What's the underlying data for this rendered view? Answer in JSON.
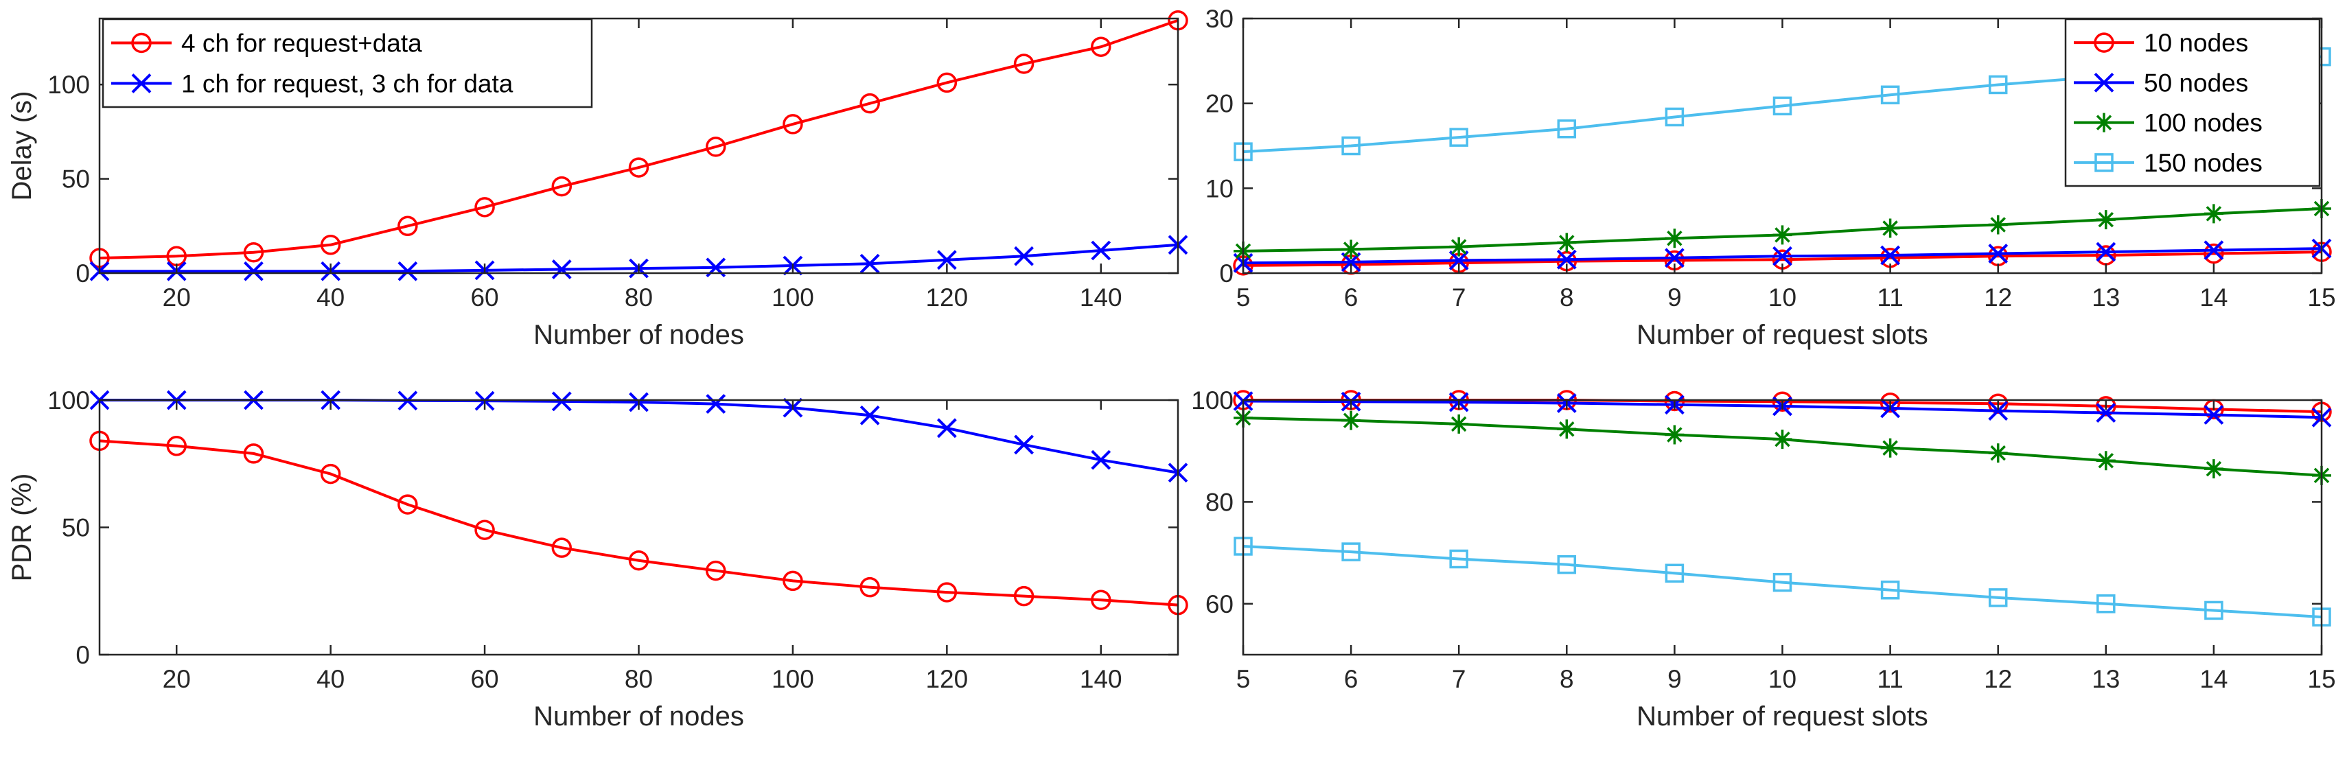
{
  "chart_data": [
    {
      "type": "line",
      "xlabel": "Number of nodes",
      "ylabel": "Delay (s)",
      "xlim": [
        10,
        150
      ],
      "ylim": [
        0,
        135
      ],
      "xticks": [
        20,
        40,
        60,
        80,
        100,
        120,
        140
      ],
      "yticks": [
        0,
        50,
        100
      ],
      "legend_position": "top-left",
      "x": [
        10,
        20,
        30,
        40,
        50,
        60,
        70,
        80,
        90,
        100,
        110,
        120,
        130,
        140,
        150
      ],
      "series": [
        {
          "name": "4 ch for request+data",
          "color": "#ff0000",
          "marker": "circle",
          "values": [
            8,
            9,
            11,
            15,
            25,
            35,
            46,
            56,
            67,
            79,
            90,
            101,
            111,
            120,
            134
          ]
        },
        {
          "name": "1 ch for request, 3 ch for data",
          "color": "#0000ff",
          "marker": "x",
          "values": [
            1,
            1,
            1,
            1,
            1,
            1.5,
            2,
            2.5,
            3,
            4,
            5,
            7,
            9,
            12,
            15
          ]
        }
      ]
    },
    {
      "type": "line",
      "xlabel": "Number of request slots",
      "ylabel": "",
      "xlim": [
        5,
        15
      ],
      "ylim": [
        0,
        30
      ],
      "xticks": [
        5,
        6,
        7,
        8,
        9,
        10,
        11,
        12,
        13,
        14,
        15
      ],
      "yticks": [
        0,
        10,
        20,
        30
      ],
      "legend_position": "top-right",
      "x": [
        5,
        6,
        7,
        8,
        9,
        10,
        11,
        12,
        13,
        14,
        15
      ],
      "series": [
        {
          "name": "10 nodes",
          "color": "#ff0000",
          "marker": "circle",
          "values": [
            0.9,
            1.0,
            1.2,
            1.4,
            1.5,
            1.6,
            1.8,
            2.0,
            2.1,
            2.3,
            2.5
          ]
        },
        {
          "name": "50 nodes",
          "color": "#0000ff",
          "marker": "x",
          "values": [
            1.2,
            1.3,
            1.5,
            1.6,
            1.8,
            2.0,
            2.1,
            2.3,
            2.5,
            2.7,
            2.9
          ]
        },
        {
          "name": "100 nodes",
          "color": "#008000",
          "marker": "asterisk",
          "values": [
            2.6,
            2.8,
            3.1,
            3.6,
            4.1,
            4.5,
            5.3,
            5.7,
            6.3,
            7.0,
            7.6
          ]
        },
        {
          "name": "150 nodes",
          "color": "#4dbeee",
          "marker": "square",
          "values": [
            14.3,
            15.0,
            16.0,
            17.0,
            18.4,
            19.7,
            21.0,
            22.2,
            23.2,
            24.3,
            25.5
          ]
        }
      ]
    },
    {
      "type": "line",
      "xlabel": "Number of nodes",
      "ylabel": "PDR (%)",
      "xlim": [
        10,
        150
      ],
      "ylim": [
        0,
        100
      ],
      "xticks": [
        20,
        40,
        60,
        80,
        100,
        120,
        140
      ],
      "yticks": [
        0,
        50,
        100
      ],
      "x": [
        10,
        20,
        30,
        40,
        50,
        60,
        70,
        80,
        90,
        100,
        110,
        120,
        130,
        140,
        150
      ],
      "series": [
        {
          "name": "4 ch for request+data",
          "color": "#ff0000",
          "marker": "circle",
          "values": [
            84,
            82,
            79,
            71,
            59,
            49,
            42,
            37,
            33,
            29,
            26.5,
            24.5,
            23,
            21.5,
            19.5
          ]
        },
        {
          "name": "1 ch for request, 3 ch for data",
          "color": "#0000ff",
          "marker": "x",
          "values": [
            100,
            100,
            100,
            100,
            99.8,
            99.7,
            99.5,
            99.2,
            98.5,
            97,
            94,
            89,
            82.5,
            76.5,
            71.5
          ]
        }
      ]
    },
    {
      "type": "line",
      "xlabel": "Number of request slots",
      "ylabel": "",
      "xlim": [
        5,
        15
      ],
      "ylim": [
        50,
        100
      ],
      "xticks": [
        5,
        6,
        7,
        8,
        9,
        10,
        11,
        12,
        13,
        14,
        15
      ],
      "yticks": [
        60,
        80,
        100
      ],
      "x": [
        5,
        6,
        7,
        8,
        9,
        10,
        11,
        12,
        13,
        14,
        15
      ],
      "series": [
        {
          "name": "10 nodes",
          "color": "#ff0000",
          "marker": "circle",
          "values": [
            100,
            100,
            100,
            100,
            99.8,
            99.7,
            99.5,
            99.3,
            98.8,
            98.2,
            97.7
          ]
        },
        {
          "name": "50 nodes",
          "color": "#0000ff",
          "marker": "x",
          "values": [
            99.8,
            99.7,
            99.6,
            99.4,
            99.1,
            98.8,
            98.4,
            97.9,
            97.5,
            97.1,
            96.6
          ]
        },
        {
          "name": "100 nodes",
          "color": "#008000",
          "marker": "asterisk",
          "values": [
            96.5,
            96,
            95.3,
            94.3,
            93.2,
            92.3,
            90.6,
            89.6,
            88.1,
            86.5,
            85.2
          ]
        },
        {
          "name": "150 nodes",
          "color": "#4dbeee",
          "marker": "square",
          "values": [
            71.3,
            70.2,
            68.8,
            67.7,
            66,
            64.2,
            62.7,
            61.2,
            60,
            58.7,
            57.4
          ]
        }
      ]
    }
  ]
}
